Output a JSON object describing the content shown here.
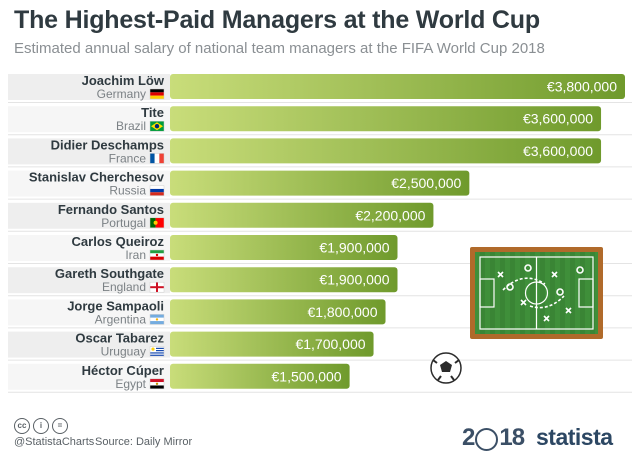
{
  "header": {
    "title": "The Highest-Paid Managers at the World Cup",
    "subtitle": "Estimated annual salary of national team managers at the FIFA World Cup 2018"
  },
  "chart_data": {
    "type": "bar",
    "orientation": "horizontal",
    "unit": "EUR",
    "categories": [
      "Joachim Löw",
      "Tite",
      "Didier Deschamps",
      "Stanislav Cherchesov",
      "Fernando Santos",
      "Carlos Queiroz",
      "Gareth Southgate",
      "Jorge Sampaoli",
      "Oscar Tabarez",
      "Héctor Cúper"
    ],
    "countries": [
      "Germany",
      "Brazil",
      "France",
      "Russia",
      "Portugal",
      "Iran",
      "England",
      "Argentina",
      "Uruguay",
      "Egypt"
    ],
    "values": [
      3800000,
      3600000,
      3600000,
      2500000,
      2200000,
      1900000,
      1900000,
      1800000,
      1700000,
      1500000
    ],
    "value_labels": [
      "€3,800,000",
      "€3,600,000",
      "€3,600,000",
      "€2,500,000",
      "€2,200,000",
      "€1,900,000",
      "€1,900,000",
      "€1,800,000",
      "€1,700,000",
      "€1,500,000"
    ],
    "bar_color_light": "#c9dd7a",
    "bar_color_dark": "#6f9a2c"
  },
  "footer": {
    "cc_icons": [
      "cc",
      "i",
      "="
    ],
    "handle": "@StatistaCharts",
    "source": "Source: Daily Mirror",
    "logo_year_left": "2",
    "logo_year_right": "18",
    "brand": "statista"
  }
}
